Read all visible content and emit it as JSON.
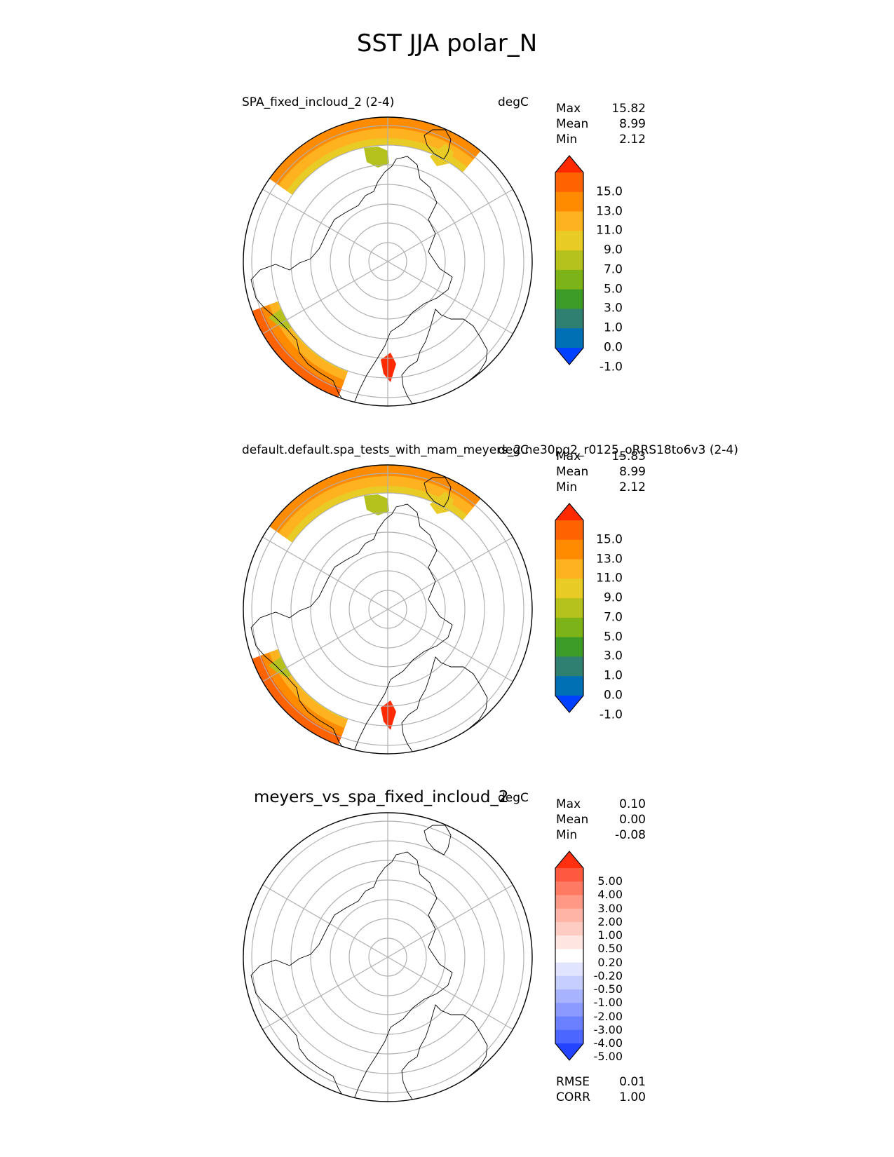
{
  "figure_title": "SST JJA polar_N",
  "colors": {
    "coastline": "#000000",
    "grid": "#b0b0b0",
    "land": "#ffffff"
  },
  "chart_data": [
    {
      "type": "heatmap",
      "projection": "north polar stereographic",
      "title": "SPA_fixed_incloud_2 (2-4)",
      "units": "degC",
      "stats": [
        {
          "label": "Max",
          "value": "15.82"
        },
        {
          "label": "Mean",
          "value": "8.99"
        },
        {
          "label": "Min",
          "value": "2.12"
        }
      ],
      "colorbar": {
        "extend": "both",
        "tick_labels": [
          "15.0",
          "13.0",
          "11.0",
          "9.0",
          "7.0",
          "5.0",
          "3.0",
          "1.0",
          "0.0",
          "-1.0"
        ],
        "colors_top_to_bottom": [
          "#ff2a00",
          "#ff6200",
          "#ff8c00",
          "#ffb220",
          "#e8cb25",
          "#b5c21d",
          "#7bb318",
          "#3d9c28",
          "#2f8070",
          "#0070b4",
          "#0040ff"
        ]
      }
    },
    {
      "type": "heatmap",
      "projection": "north polar stereographic",
      "title": "default.default.spa_tests_with_mam_meyers_2.ne30pg2_r0125_oRRS18to6v3 (2-4)",
      "units": "degC",
      "stats": [
        {
          "label": "Max",
          "value": "15.83"
        },
        {
          "label": "Mean",
          "value": "8.99"
        },
        {
          "label": "Min",
          "value": "2.12"
        }
      ],
      "colorbar": {
        "extend": "both",
        "tick_labels": [
          "15.0",
          "13.0",
          "11.0",
          "9.0",
          "7.0",
          "5.0",
          "3.0",
          "1.0",
          "0.0",
          "-1.0"
        ],
        "colors_top_to_bottom": [
          "#ff2a00",
          "#ff6200",
          "#ff8c00",
          "#ffb220",
          "#e8cb25",
          "#b5c21d",
          "#7bb318",
          "#3d9c28",
          "#2f8070",
          "#0070b4",
          "#0040ff"
        ]
      }
    },
    {
      "type": "heatmap",
      "projection": "north polar stereographic",
      "title": "meyers_vs_spa_fixed_incloud_2",
      "units": "degC",
      "stats": [
        {
          "label": "Max",
          "value": "0.10"
        },
        {
          "label": "Mean",
          "value": "0.00"
        },
        {
          "label": "Min",
          "value": "-0.08"
        }
      ],
      "metrics": [
        {
          "label": "RMSE",
          "value": "0.01"
        },
        {
          "label": "CORR",
          "value": "1.00"
        }
      ],
      "colorbar": {
        "extend": "both",
        "tick_labels": [
          "5.00",
          "4.00",
          "3.00",
          "2.00",
          "1.00",
          "0.50",
          "0.20",
          "-0.20",
          "-0.50",
          "-1.00",
          "-2.00",
          "-3.00",
          "-4.00",
          "-5.00"
        ],
        "colors_top_to_bottom": [
          "#ff3010",
          "#ff5a40",
          "#ff7a62",
          "#ff9884",
          "#ffb4a6",
          "#ffccc4",
          "#ffe6e1",
          "#ffffff",
          "#e0e4ff",
          "#c6ceff",
          "#a8b4ff",
          "#8a9aff",
          "#6a80ff",
          "#4a66ff",
          "#2244ff"
        ]
      }
    }
  ]
}
